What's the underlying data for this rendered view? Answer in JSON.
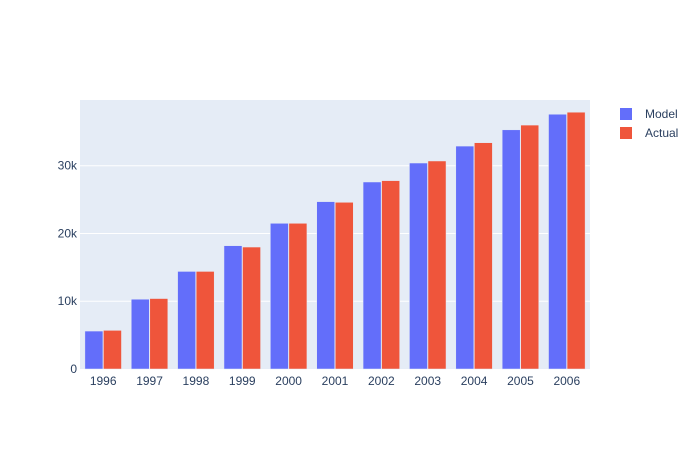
{
  "chart_data": {
    "type": "bar",
    "title": "",
    "xlabel": "",
    "ylabel": "",
    "categories": [
      "1996",
      "1997",
      "1998",
      "1999",
      "2000",
      "2001",
      "2002",
      "2003",
      "2004",
      "2005",
      "2006"
    ],
    "series": [
      {
        "name": "Model",
        "color": "#636efa",
        "values": [
          5600,
          10300,
          14400,
          18200,
          21500,
          24700,
          27600,
          30400,
          32900,
          35300,
          37600
        ]
      },
      {
        "name": "Actual",
        "color": "#ef553b",
        "values": [
          5700,
          10400,
          14400,
          18000,
          21500,
          24600,
          27800,
          30700,
          33400,
          36000,
          37900
        ]
      }
    ],
    "ylim": [
      0,
      39700
    ],
    "yticks": [
      0,
      10000,
      20000,
      30000
    ],
    "ytick_labels": [
      "0",
      "10k",
      "20k",
      "30k"
    ],
    "grid": true,
    "plot_background": "#e5ecf6",
    "legend_position": "top-right"
  }
}
